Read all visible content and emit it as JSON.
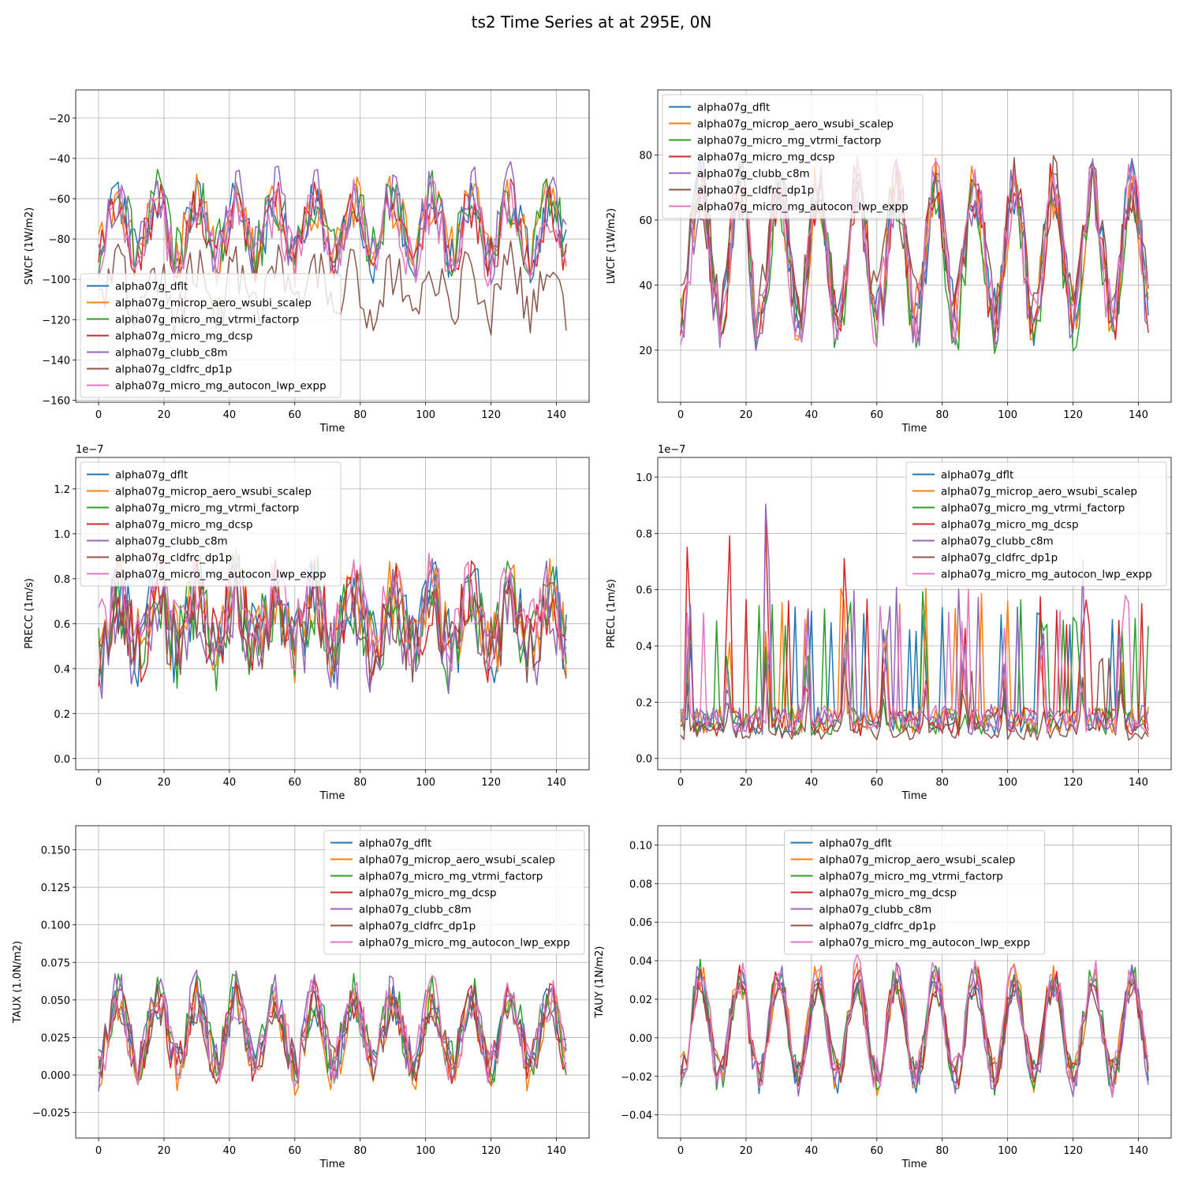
{
  "figure_title": "ts2 Time Series at at 295E, 0N",
  "colors": {
    "alpha07g_dflt": "#1f77b4",
    "alpha07g_microp_aero_wsubi_scalep": "#ff7f0e",
    "alpha07g_micro_mg_vtrmi_factorp": "#2ca02c",
    "alpha07g_micro_mg_dcsp": "#d62728",
    "alpha07g_clubb_c8m": "#9467bd",
    "alpha07g_cldfrc_dp1p": "#8c564b",
    "alpha07g_micro_mg_autocon_lwp_expp": "#e377c2"
  },
  "chart_data": [
    {
      "type": "line",
      "panel": "swcf",
      "title": "",
      "xlabel": "Time",
      "ylabel": "SWCF (1W/m2)",
      "offset_text": "",
      "xlim": [
        -7,
        150
      ],
      "ylim": [
        -161,
        -6
      ],
      "xticks": [
        0,
        20,
        40,
        60,
        80,
        100,
        120,
        140
      ],
      "yticks": [
        -160,
        -140,
        -120,
        -100,
        -80,
        -60,
        -40,
        -20
      ],
      "ytick_labels": [
        "−160",
        "−140",
        "−120",
        "−100",
        "−80",
        "−60",
        "−40",
        "−20"
      ],
      "legend_loc": "lower-left",
      "series_params": [
        {
          "name": "alpha07g_dflt",
          "mean": -75,
          "amp": 14,
          "noise": 13,
          "seed": 11
        },
        {
          "name": "alpha07g_microp_aero_wsubi_scalep",
          "mean": -74,
          "amp": 13,
          "noise": 14,
          "seed": 12
        },
        {
          "name": "alpha07g_micro_mg_vtrmi_factorp",
          "mean": -72,
          "amp": 14,
          "noise": 15,
          "seed": 13
        },
        {
          "name": "alpha07g_micro_mg_dcsp",
          "mean": -76,
          "amp": 13,
          "noise": 13,
          "seed": 14
        },
        {
          "name": "alpha07g_clubb_c8m",
          "mean": -72,
          "amp": 16,
          "noise": 15,
          "seed": 15
        },
        {
          "name": "alpha07g_cldfrc_dp1p",
          "mean": -106,
          "amp": 12,
          "noise": 14,
          "seed": 16
        },
        {
          "name": "alpha07g_micro_mg_autocon_lwp_expp",
          "mean": -78,
          "amp": 14,
          "noise": 14,
          "seed": 17
        }
      ]
    },
    {
      "type": "line",
      "panel": "lwcf",
      "title": "",
      "xlabel": "Time",
      "ylabel": "LWCF (1W/m2)",
      "offset_text": "",
      "xlim": [
        -7,
        150
      ],
      "ylim": [
        4,
        100
      ],
      "xticks": [
        0,
        20,
        40,
        60,
        80,
        100,
        120,
        140
      ],
      "yticks": [
        20,
        40,
        60,
        80
      ],
      "ytick_labels": [
        "20",
        "40",
        "60",
        "80"
      ],
      "legend_loc": "upper-left",
      "series_params": [
        {
          "name": "alpha07g_dflt",
          "mean": 50,
          "amp": 20,
          "noise": 10,
          "seed": 21
        },
        {
          "name": "alpha07g_microp_aero_wsubi_scalep",
          "mean": 50,
          "amp": 20,
          "noise": 10,
          "seed": 22
        },
        {
          "name": "alpha07g_micro_mg_vtrmi_factorp",
          "mean": 48,
          "amp": 21,
          "noise": 10,
          "seed": 23
        },
        {
          "name": "alpha07g_micro_mg_dcsp",
          "mean": 50,
          "amp": 20,
          "noise": 10,
          "seed": 24
        },
        {
          "name": "alpha07g_clubb_c8m",
          "mean": 49,
          "amp": 22,
          "noise": 11,
          "seed": 25
        },
        {
          "name": "alpha07g_cldfrc_dp1p",
          "mean": 52,
          "amp": 18,
          "noise": 10,
          "seed": 26
        },
        {
          "name": "alpha07g_micro_mg_autocon_lwp_expp",
          "mean": 50,
          "amp": 20,
          "noise": 10,
          "seed": 27
        }
      ]
    },
    {
      "type": "line",
      "panel": "precc",
      "title": "",
      "xlabel": "Time",
      "ylabel": "PRECC (1m/s)",
      "offset_text": "1e−7",
      "xlim": [
        -7,
        150
      ],
      "ylim": [
        -0.05,
        1.34
      ],
      "xticks": [
        0,
        20,
        40,
        60,
        80,
        100,
        120,
        140
      ],
      "yticks": [
        0.0,
        0.2,
        0.4,
        0.6,
        0.8,
        1.0,
        1.2
      ],
      "ytick_labels": [
        "0.0",
        "0.2",
        "0.4",
        "0.6",
        "0.8",
        "1.0",
        "1.2"
      ],
      "legend_loc": "upper-left",
      "series_params": [
        {
          "name": "alpha07g_dflt",
          "mean": 0.62,
          "amp": 0.12,
          "noise": 0.18,
          "seed": 31
        },
        {
          "name": "alpha07g_microp_aero_wsubi_scalep",
          "mean": 0.62,
          "amp": 0.12,
          "noise": 0.18,
          "seed": 32
        },
        {
          "name": "alpha07g_micro_mg_vtrmi_factorp",
          "mean": 0.6,
          "amp": 0.13,
          "noise": 0.2,
          "seed": 33
        },
        {
          "name": "alpha07g_micro_mg_dcsp",
          "mean": 0.6,
          "amp": 0.12,
          "noise": 0.18,
          "seed": 34
        },
        {
          "name": "alpha07g_clubb_c8m",
          "mean": 0.58,
          "amp": 0.14,
          "noise": 0.2,
          "seed": 35
        },
        {
          "name": "alpha07g_cldfrc_dp1p",
          "mean": 0.58,
          "amp": 0.1,
          "noise": 0.16,
          "seed": 36
        },
        {
          "name": "alpha07g_micro_mg_autocon_lwp_expp",
          "mean": 0.66,
          "amp": 0.12,
          "noise": 0.16,
          "seed": 37
        }
      ]
    },
    {
      "type": "line",
      "panel": "precl",
      "title": "",
      "xlabel": "Time",
      "ylabel": "PRECL (1m/s)",
      "offset_text": "1e−7",
      "xlim": [
        -7,
        150
      ],
      "ylim": [
        -0.04,
        1.07
      ],
      "xticks": [
        0,
        20,
        40,
        60,
        80,
        100,
        120,
        140
      ],
      "yticks": [
        0.0,
        0.2,
        0.4,
        0.6,
        0.8,
        1.0
      ],
      "ytick_labels": [
        "0.0",
        "0.2",
        "0.4",
        "0.6",
        "0.8",
        "1.0"
      ],
      "legend_loc": "upper-right",
      "series_params": [
        {
          "name": "alpha07g_dflt",
          "mean": 0.16,
          "amp": 0.12,
          "noise": 0.1,
          "seed": 41,
          "spiky": true
        },
        {
          "name": "alpha07g_microp_aero_wsubi_scalep",
          "mean": 0.18,
          "amp": 0.14,
          "noise": 0.1,
          "seed": 42,
          "spiky": true
        },
        {
          "name": "alpha07g_micro_mg_vtrmi_factorp",
          "mean": 0.16,
          "amp": 0.13,
          "noise": 0.1,
          "seed": 43,
          "spiky": true
        },
        {
          "name": "alpha07g_micro_mg_dcsp",
          "mean": 0.16,
          "amp": 0.13,
          "noise": 0.1,
          "seed": 44,
          "spiky": true
        },
        {
          "name": "alpha07g_clubb_c8m",
          "mean": 0.17,
          "amp": 0.14,
          "noise": 0.11,
          "seed": 45,
          "spiky": true
        },
        {
          "name": "alpha07g_cldfrc_dp1p",
          "mean": 0.13,
          "amp": 0.08,
          "noise": 0.06,
          "seed": 46,
          "spiky": true
        },
        {
          "name": "alpha07g_micro_mg_autocon_lwp_expp",
          "mean": 0.18,
          "amp": 0.14,
          "noise": 0.1,
          "seed": 47,
          "spiky": true
        }
      ]
    },
    {
      "type": "line",
      "panel": "taux",
      "title": "",
      "xlabel": "Time",
      "ylabel": "TAUX (1.0N/m2)",
      "offset_text": "",
      "xlim": [
        -7,
        150
      ],
      "ylim": [
        -0.042,
        0.166
      ],
      "xticks": [
        0,
        20,
        40,
        60,
        80,
        100,
        120,
        140
      ],
      "yticks": [
        -0.025,
        0.0,
        0.025,
        0.05,
        0.075,
        0.1,
        0.125,
        0.15
      ],
      "ytick_labels": [
        "−0.025",
        "0.000",
        "0.025",
        "0.050",
        "0.075",
        "0.100",
        "0.125",
        "0.150"
      ],
      "legend_loc": "upper-right",
      "series_params": [
        {
          "name": "alpha07g_dflt",
          "mean": 0.028,
          "amp": 0.022,
          "noise": 0.015,
          "seed": 51
        },
        {
          "name": "alpha07g_microp_aero_wsubi_scalep",
          "mean": 0.026,
          "amp": 0.024,
          "noise": 0.016,
          "seed": 52
        },
        {
          "name": "alpha07g_micro_mg_vtrmi_factorp",
          "mean": 0.03,
          "amp": 0.024,
          "noise": 0.017,
          "seed": 53
        },
        {
          "name": "alpha07g_micro_mg_dcsp",
          "mean": 0.028,
          "amp": 0.022,
          "noise": 0.015,
          "seed": 54
        },
        {
          "name": "alpha07g_clubb_c8m",
          "mean": 0.03,
          "amp": 0.024,
          "noise": 0.017,
          "seed": 55
        },
        {
          "name": "alpha07g_cldfrc_dp1p",
          "mean": 0.028,
          "amp": 0.02,
          "noise": 0.014,
          "seed": 56
        },
        {
          "name": "alpha07g_micro_mg_autocon_lwp_expp",
          "mean": 0.03,
          "amp": 0.022,
          "noise": 0.016,
          "seed": 57
        }
      ]
    },
    {
      "type": "line",
      "panel": "tauy",
      "title": "",
      "xlabel": "Time",
      "ylabel": "TAUY (1N/m2)",
      "offset_text": "",
      "xlim": [
        -7,
        150
      ],
      "ylim": [
        -0.052,
        0.11
      ],
      "xticks": [
        0,
        20,
        40,
        60,
        80,
        100,
        120,
        140
      ],
      "yticks": [
        -0.04,
        -0.02,
        0.0,
        0.02,
        0.04,
        0.06,
        0.08,
        0.1
      ],
      "ytick_labels": [
        "−0.04",
        "−0.02",
        "0.00",
        "0.02",
        "0.04",
        "0.06",
        "0.08",
        "0.10"
      ],
      "legend_loc": "upper-center",
      "series_params": [
        {
          "name": "alpha07g_dflt",
          "mean": 0.005,
          "amp": 0.025,
          "noise": 0.009,
          "seed": 61
        },
        {
          "name": "alpha07g_microp_aero_wsubi_scalep",
          "mean": 0.006,
          "amp": 0.026,
          "noise": 0.01,
          "seed": 62
        },
        {
          "name": "alpha07g_micro_mg_vtrmi_factorp",
          "mean": 0.005,
          "amp": 0.026,
          "noise": 0.01,
          "seed": 63
        },
        {
          "name": "alpha07g_micro_mg_dcsp",
          "mean": 0.005,
          "amp": 0.025,
          "noise": 0.009,
          "seed": 64
        },
        {
          "name": "alpha07g_clubb_c8m",
          "mean": 0.005,
          "amp": 0.026,
          "noise": 0.01,
          "seed": 65
        },
        {
          "name": "alpha07g_cldfrc_dp1p",
          "mean": 0.004,
          "amp": 0.022,
          "noise": 0.008,
          "seed": 66
        },
        {
          "name": "alpha07g_micro_mg_autocon_lwp_expp",
          "mean": 0.006,
          "amp": 0.027,
          "noise": 0.011,
          "seed": 67
        }
      ]
    }
  ]
}
